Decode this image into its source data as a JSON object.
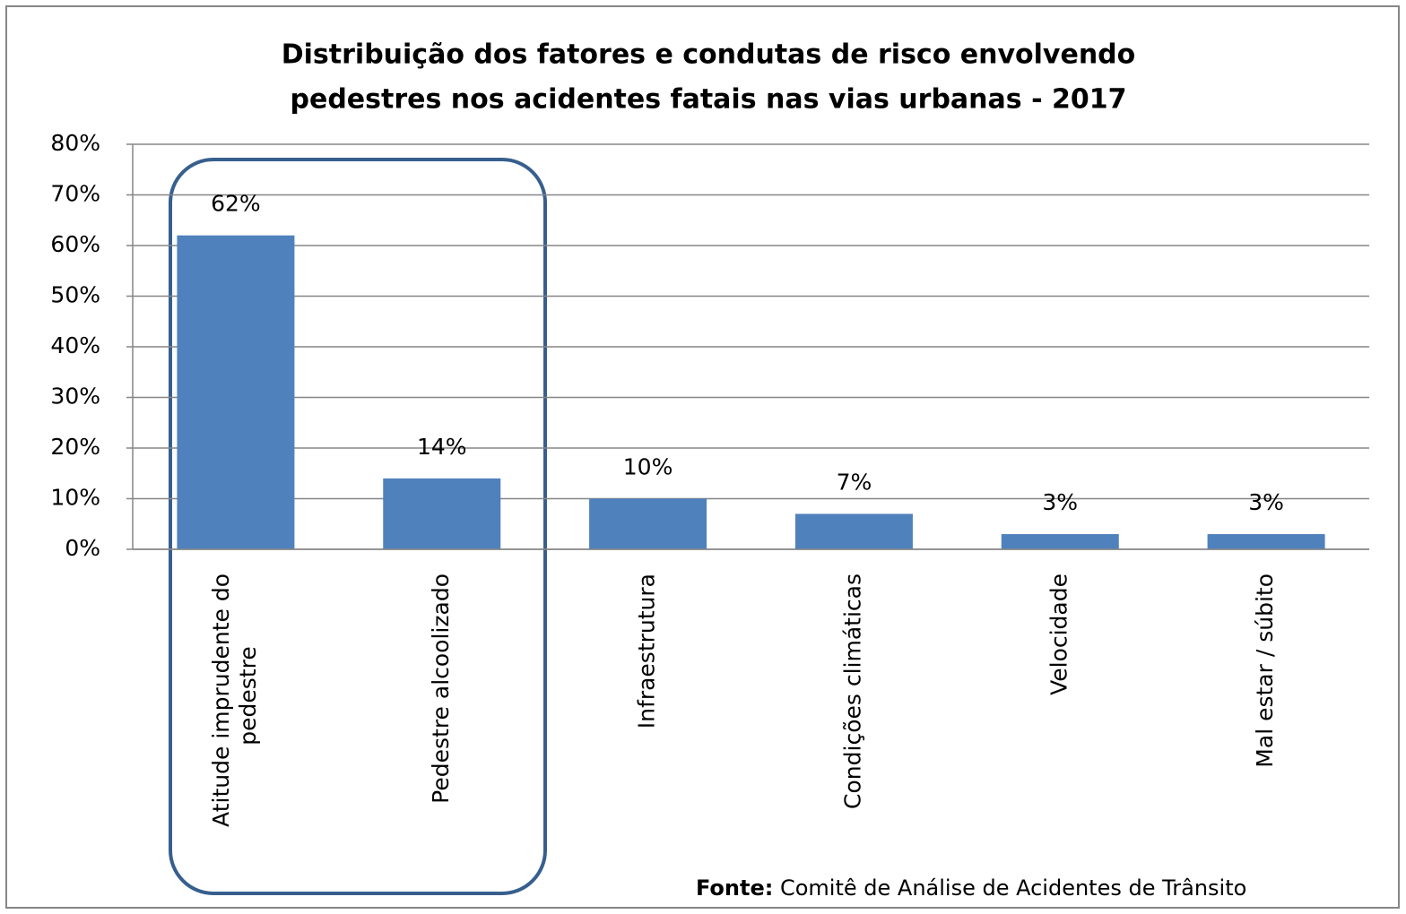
{
  "chart_data": {
    "type": "bar",
    "title": [
      "Distribuição dos fatores e condutas de risco envolvendo",
      "pedestres nos acidentes fatais nas vias urbanas  - 2017"
    ],
    "categories": [
      "Atitude imprudente do pedestre",
      "Pedestre alcoolizado",
      "Infraestrutura",
      "Condições climáticas",
      "Velocidade",
      "Mal estar / súbito"
    ],
    "values": [
      62,
      14,
      10,
      7,
      3,
      3
    ],
    "value_labels": [
      "62%",
      "14%",
      "10%",
      "7%",
      "3%",
      "3%"
    ],
    "color": "#4f81bd",
    "ylim": [
      0,
      80
    ],
    "yticks": [
      {
        "value": 0,
        "label": "0%"
      },
      {
        "value": 10,
        "label": "10%"
      },
      {
        "value": 20,
        "label": "20%"
      },
      {
        "value": 30,
        "label": "30%"
      },
      {
        "value": 40,
        "label": "40%"
      },
      {
        "value": 50,
        "label": "50%"
      },
      {
        "value": 60,
        "label": "60%"
      },
      {
        "value": 70,
        "label": "70%"
      },
      {
        "value": 80,
        "label": "80%"
      }
    ],
    "grid": true,
    "source": {
      "label": "Fonte:",
      "text": "Comitê de Análise de Acidentes de Trânsito"
    }
  }
}
